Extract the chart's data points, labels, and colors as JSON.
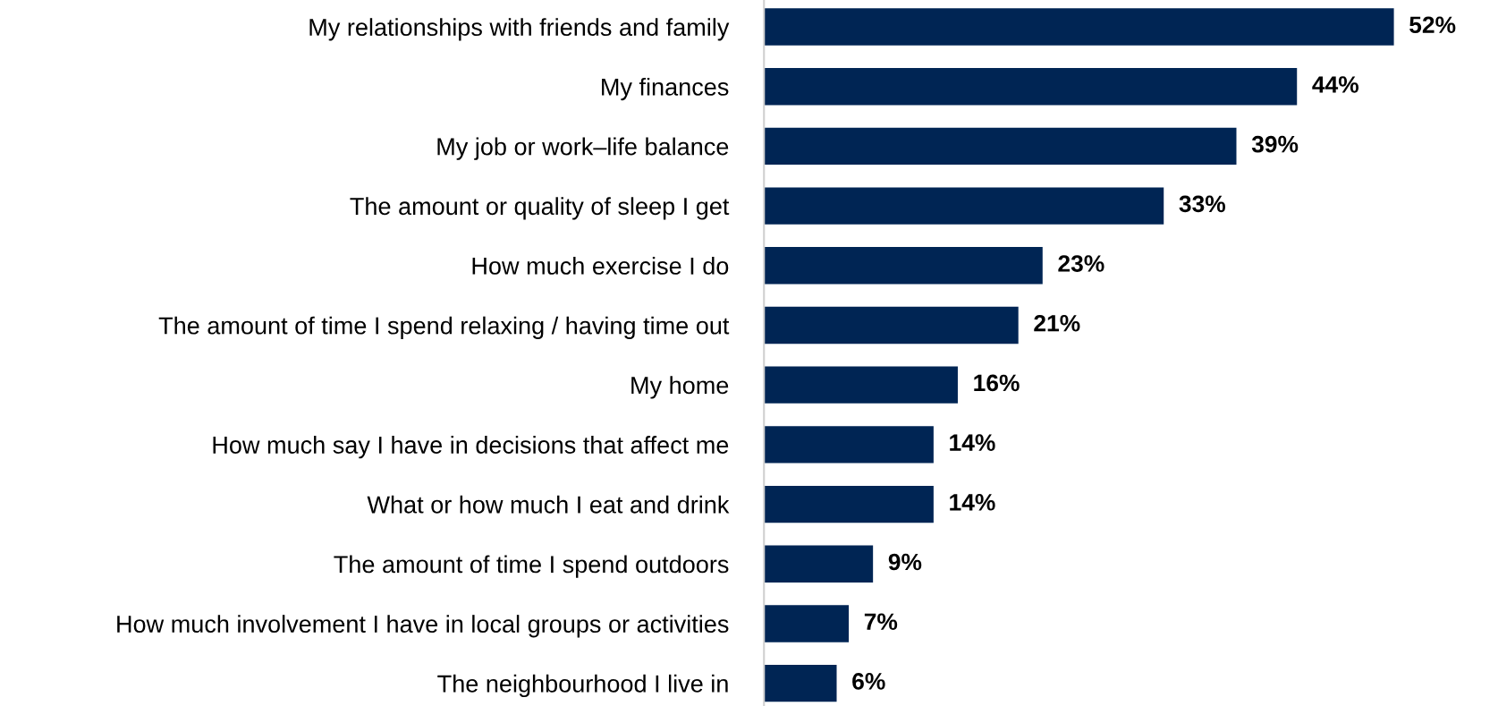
{
  "chart_data": {
    "type": "bar",
    "orientation": "horizontal",
    "categories": [
      "My relationships with friends and family",
      "My finances",
      "My job or work–life balance",
      "The amount or quality of sleep I get",
      "How much exercise I do",
      "The amount of time I spend relaxing / having time out",
      "My home",
      "How much say I have in decisions that affect me",
      "What or how much I eat and drink",
      "The amount of time I spend outdoors",
      "How much involvement I have in local groups or activities",
      "The neighbourhood I live in"
    ],
    "values": [
      52,
      44,
      39,
      33,
      23,
      21,
      16,
      14,
      14,
      9,
      7,
      6
    ],
    "value_labels": [
      "52%",
      "44%",
      "39%",
      "33%",
      "23%",
      "21%",
      "16%",
      "14%",
      "14%",
      "9%",
      "7%",
      "6%"
    ],
    "color": "#002554",
    "grid": false,
    "legend": false,
    "tick_labels": "y"
  }
}
